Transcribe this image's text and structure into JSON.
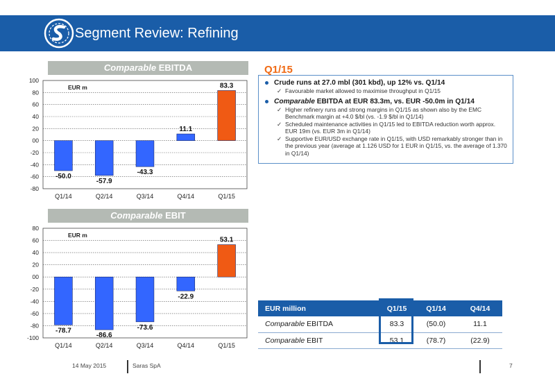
{
  "header": {
    "title": "Segment Review: Refining"
  },
  "ebitda_banner": {
    "italic": "Comparable",
    "rest": "EBITDA"
  },
  "ebit_banner": {
    "italic": "Comparable",
    "rest": "EBIT"
  },
  "period": "Q1/15",
  "bullets": [
    {
      "text": "Crude runs at 27.0 mbl (301 kbd), up 12% vs. Q1/14",
      "italic_prefix": "",
      "subs": [
        "Favourable market allowed to maximise throughput in Q1/15"
      ]
    },
    {
      "text": " EBITDA at EUR 83.3m, vs. EUR -50.0m in Q1/14",
      "italic_prefix": "Comparable",
      "subs": [
        "Higher refinery runs and strong margins in Q1/15 as shown also by the EMC Benchmark margin at +4.0 $/bl (vs. -1.9 $/bl in Q1/14)",
        "Scheduled maintenance activities in Q1/15 led to EBITDA reduction worth approx. EUR 19m (vs. EUR 3m in Q1/14)",
        "Supportive EUR/USD exchange rate in Q1/15, with USD remarkably stronger than in the previous year (average at 1.126 USD for 1 EUR in Q1/15, vs. the average of 1.370 in Q1/14)"
      ]
    }
  ],
  "table": {
    "headers": [
      "EUR million",
      "Q1/15",
      "Q1/14",
      "Q4/14"
    ],
    "rows": [
      {
        "label_italic": "Comparable",
        "label_rest": " EBITDA",
        "values": [
          "83.3",
          "(50.0)",
          "11.1"
        ]
      },
      {
        "label_italic": "Comparable",
        "label_rest": " EBIT",
        "values": [
          "53.1",
          "(78.7)",
          "(22.9)"
        ]
      }
    ]
  },
  "footer": {
    "date": "14 May 2015",
    "company": "Saras SpA",
    "page": "7"
  },
  "colors": {
    "brand_blue": "#1a5da8",
    "bar_blue": "#3366ff",
    "bar_orange": "#f05a14",
    "accent_orange": "#f06a14",
    "banner_grey": "#b4bab4"
  },
  "chart_data": [
    {
      "type": "bar",
      "unit_label": "EUR m",
      "categories": [
        "Q1/14",
        "Q2/14",
        "Q3/14",
        "Q4/14",
        "Q1/15"
      ],
      "values": [
        -50.0,
        -57.9,
        -43.3,
        11.1,
        83.3
      ],
      "labels": [
        "-50.0",
        "-57.9",
        "-43.3",
        "11.1",
        "83.3"
      ],
      "ylim": [
        -80,
        100
      ],
      "yticks": [
        -80,
        -60,
        -40,
        -20,
        0,
        20,
        40,
        60,
        80,
        100
      ],
      "ytick_labels": [
        "-80",
        "-60",
        "-40",
        "-20",
        "00",
        "20",
        "40",
        "60",
        "80",
        "100"
      ],
      "highlight_index": 4,
      "grid": true
    },
    {
      "type": "bar",
      "unit_label": "EUR m",
      "categories": [
        "Q1/14",
        "Q2/14",
        "Q3/14",
        "Q4/14",
        "Q1/15"
      ],
      "values": [
        -78.7,
        -86.6,
        -73.6,
        -22.9,
        53.1
      ],
      "labels": [
        "-78.7",
        "-86.6",
        "-73.6",
        "-22.9",
        "53.1"
      ],
      "ylim": [
        -100,
        80
      ],
      "yticks": [
        -100,
        -80,
        -60,
        -40,
        -20,
        0,
        20,
        40,
        60,
        80
      ],
      "ytick_labels": [
        "-100",
        "-80",
        "-60",
        "-40",
        "-20",
        "00",
        "20",
        "40",
        "60",
        "80"
      ],
      "highlight_index": 4,
      "grid": true
    }
  ]
}
